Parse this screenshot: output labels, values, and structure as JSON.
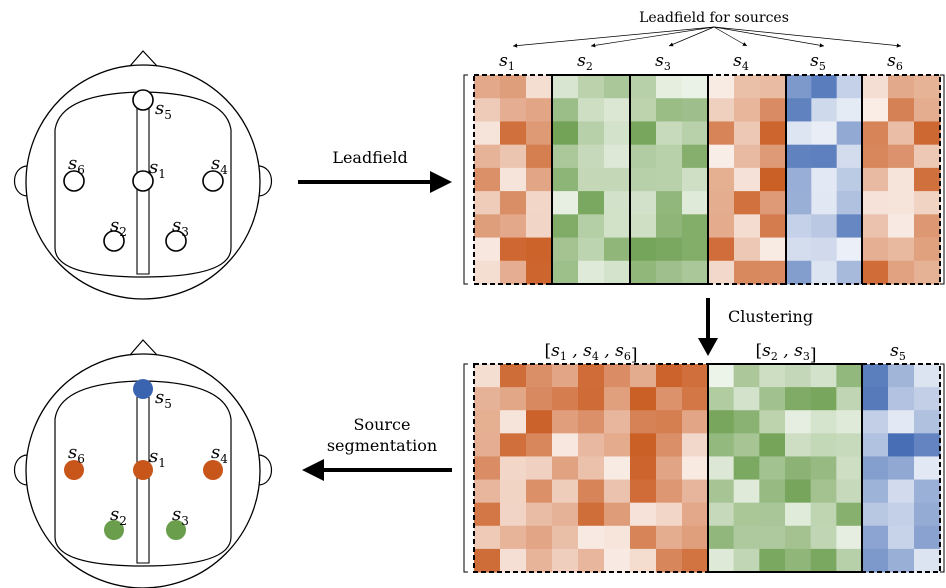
{
  "texts": {
    "leadfield_for_sources": "Leadfield for sources",
    "leadfield_arrow": "Leadfield",
    "clustering": "Clustering",
    "source_segmentation_line1": "Source",
    "source_segmentation_line2": "segmentation"
  },
  "sources": [
    {
      "id": "s1",
      "base": "s",
      "sub": "1"
    },
    {
      "id": "s2",
      "base": "s",
      "sub": "2"
    },
    {
      "id": "s3",
      "base": "s",
      "sub": "3"
    },
    {
      "id": "s4",
      "base": "s",
      "sub": "4"
    },
    {
      "id": "s5",
      "base": "s",
      "sub": "5"
    },
    {
      "id": "s6",
      "base": "s",
      "sub": "6"
    }
  ],
  "matrix_top": {
    "column_labels": [
      {
        "base": "s",
        "sub": "1"
      },
      {
        "base": "s",
        "sub": "2"
      },
      {
        "base": "s",
        "sub": "3"
      },
      {
        "base": "s",
        "sub": "4"
      },
      {
        "base": "s",
        "sub": "5"
      },
      {
        "base": "s",
        "sub": "6"
      }
    ]
  },
  "matrix_bottom": {
    "cluster_labels": [
      {
        "text": "[s1 , s4 , s6]"
      },
      {
        "text": "[s2 , s3]"
      },
      {
        "text": "s5"
      }
    ]
  },
  "colors": {
    "orange": "#c8561a",
    "green": "#6a9d4c",
    "blue": "#3a64b0",
    "outline": "#000000"
  },
  "source_colors": {
    "s1": "orange",
    "s4": "orange",
    "s6": "orange",
    "s2": "green",
    "s3": "green",
    "s5": "blue"
  }
}
